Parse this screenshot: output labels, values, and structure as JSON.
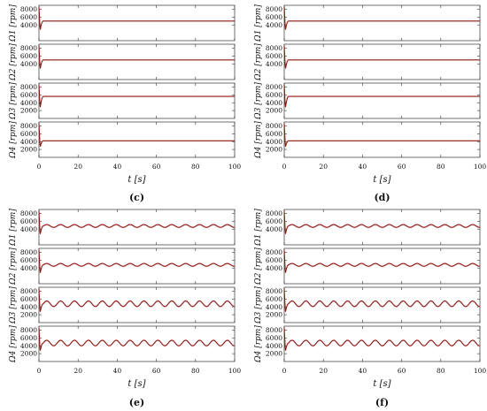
{
  "colors": {
    "line": "#8b1a10",
    "band": "#f7c8d8",
    "axis": "#333333"
  },
  "chart_data": [
    {
      "type": "line",
      "caption": "(c)",
      "xlabel": "t  [s]",
      "xlim": [
        0,
        100
      ],
      "xticks": [
        "0",
        "20",
        "40",
        "60",
        "80",
        "100"
      ],
      "subplots": [
        {
          "ylabel": "Ω1 [rpm]",
          "ylim": [
            0,
            9000
          ],
          "yticks": [
            "4000",
            "6000",
            "8000"
          ],
          "steady": 5000,
          "amplitude": 0,
          "period": 10
        },
        {
          "ylabel": "Ω2 [rpm]",
          "ylim": [
            0,
            9000
          ],
          "yticks": [
            "4000",
            "6000",
            "8000"
          ],
          "steady": 5000,
          "amplitude": 0,
          "period": 10
        },
        {
          "ylabel": "Ω3 [rpm]",
          "ylim": [
            0,
            9000
          ],
          "yticks": [
            "2000",
            "4000",
            "6000",
            "8000"
          ],
          "steady": 5600,
          "amplitude": 0,
          "period": 10
        },
        {
          "ylabel": "Ω4 [rpm]",
          "ylim": [
            0,
            9000
          ],
          "yticks": [
            "2000",
            "4000",
            "6000",
            "8000"
          ],
          "steady": 4200,
          "amplitude": 0,
          "period": 10
        }
      ]
    },
    {
      "type": "line",
      "caption": "(d)",
      "xlabel": "t  [s]",
      "xlim": [
        0,
        100
      ],
      "xticks": [
        "0",
        "20",
        "40",
        "60",
        "80",
        "100"
      ],
      "subplots": [
        {
          "ylabel": "Ω1 [rpm]",
          "ylim": [
            0,
            9000
          ],
          "yticks": [
            "4000",
            "6000",
            "8000"
          ],
          "steady": 5000,
          "amplitude": 0,
          "period": 10
        },
        {
          "ylabel": "Ω2 [rpm]",
          "ylim": [
            0,
            9000
          ],
          "yticks": [
            "4000",
            "6000",
            "8000"
          ],
          "steady": 5000,
          "amplitude": 0,
          "period": 10
        },
        {
          "ylabel": "Ω3 [rpm]",
          "ylim": [
            0,
            9000
          ],
          "yticks": [
            "2000",
            "4000",
            "6000",
            "8000"
          ],
          "steady": 5600,
          "amplitude": 0,
          "period": 10
        },
        {
          "ylabel": "Ω4 [rpm]",
          "ylim": [
            0,
            9000
          ],
          "yticks": [
            "2000",
            "4000",
            "6000",
            "8000"
          ],
          "steady": 4200,
          "amplitude": 0,
          "period": 10
        }
      ]
    },
    {
      "type": "line",
      "caption": "(e)",
      "xlabel": "t  [s]",
      "xlim": [
        0,
        100
      ],
      "xticks": [
        "0",
        "20",
        "40",
        "60",
        "80",
        "100"
      ],
      "subplots": [
        {
          "ylabel": "Ω1 [rpm]",
          "ylim": [
            0,
            9000
          ],
          "yticks": [
            "4000",
            "6000",
            "8000"
          ],
          "steady": 4800,
          "amplitude": 350,
          "period": 7.1
        },
        {
          "ylabel": "Ω2 [rpm]",
          "ylim": [
            0,
            9000
          ],
          "yticks": [
            "4000",
            "6000",
            "8000"
          ],
          "steady": 4800,
          "amplitude": 350,
          "period": 7.1
        },
        {
          "ylabel": "Ω3 [rpm]",
          "ylim": [
            0,
            9000
          ],
          "yticks": [
            "2000",
            "4000",
            "6000",
            "8000"
          ],
          "steady": 4800,
          "amplitude": 700,
          "period": 7.1
        },
        {
          "ylabel": "Ω4 [rpm]",
          "ylim": [
            0,
            9000
          ],
          "yticks": [
            "2000",
            "4000",
            "6000",
            "8000"
          ],
          "steady": 4700,
          "amplitude": 700,
          "period": 7.1
        }
      ]
    },
    {
      "type": "line",
      "caption": "(f)",
      "xlabel": "t  [s]",
      "xlim": [
        0,
        100
      ],
      "xticks": [
        "0",
        "20",
        "40",
        "60",
        "80",
        "100"
      ],
      "subplots": [
        {
          "ylabel": "Ω1 [rpm]",
          "ylim": [
            0,
            9000
          ],
          "yticks": [
            "4000",
            "6000",
            "8000"
          ],
          "steady": 4800,
          "amplitude": 350,
          "period": 7.1
        },
        {
          "ylabel": "Ω2 [rpm]",
          "ylim": [
            0,
            9000
          ],
          "yticks": [
            "4000",
            "6000",
            "8000"
          ],
          "steady": 4800,
          "amplitude": 350,
          "period": 7.1
        },
        {
          "ylabel": "Ω3 [rpm]",
          "ylim": [
            0,
            9000
          ],
          "yticks": [
            "2000",
            "4000",
            "6000",
            "8000"
          ],
          "steady": 4800,
          "amplitude": 700,
          "period": 7.1
        },
        {
          "ylabel": "Ω4 [rpm]",
          "ylim": [
            0,
            9000
          ],
          "yticks": [
            "2000",
            "4000",
            "6000",
            "8000"
          ],
          "steady": 4700,
          "amplitude": 700,
          "period": 7.1
        }
      ]
    }
  ]
}
